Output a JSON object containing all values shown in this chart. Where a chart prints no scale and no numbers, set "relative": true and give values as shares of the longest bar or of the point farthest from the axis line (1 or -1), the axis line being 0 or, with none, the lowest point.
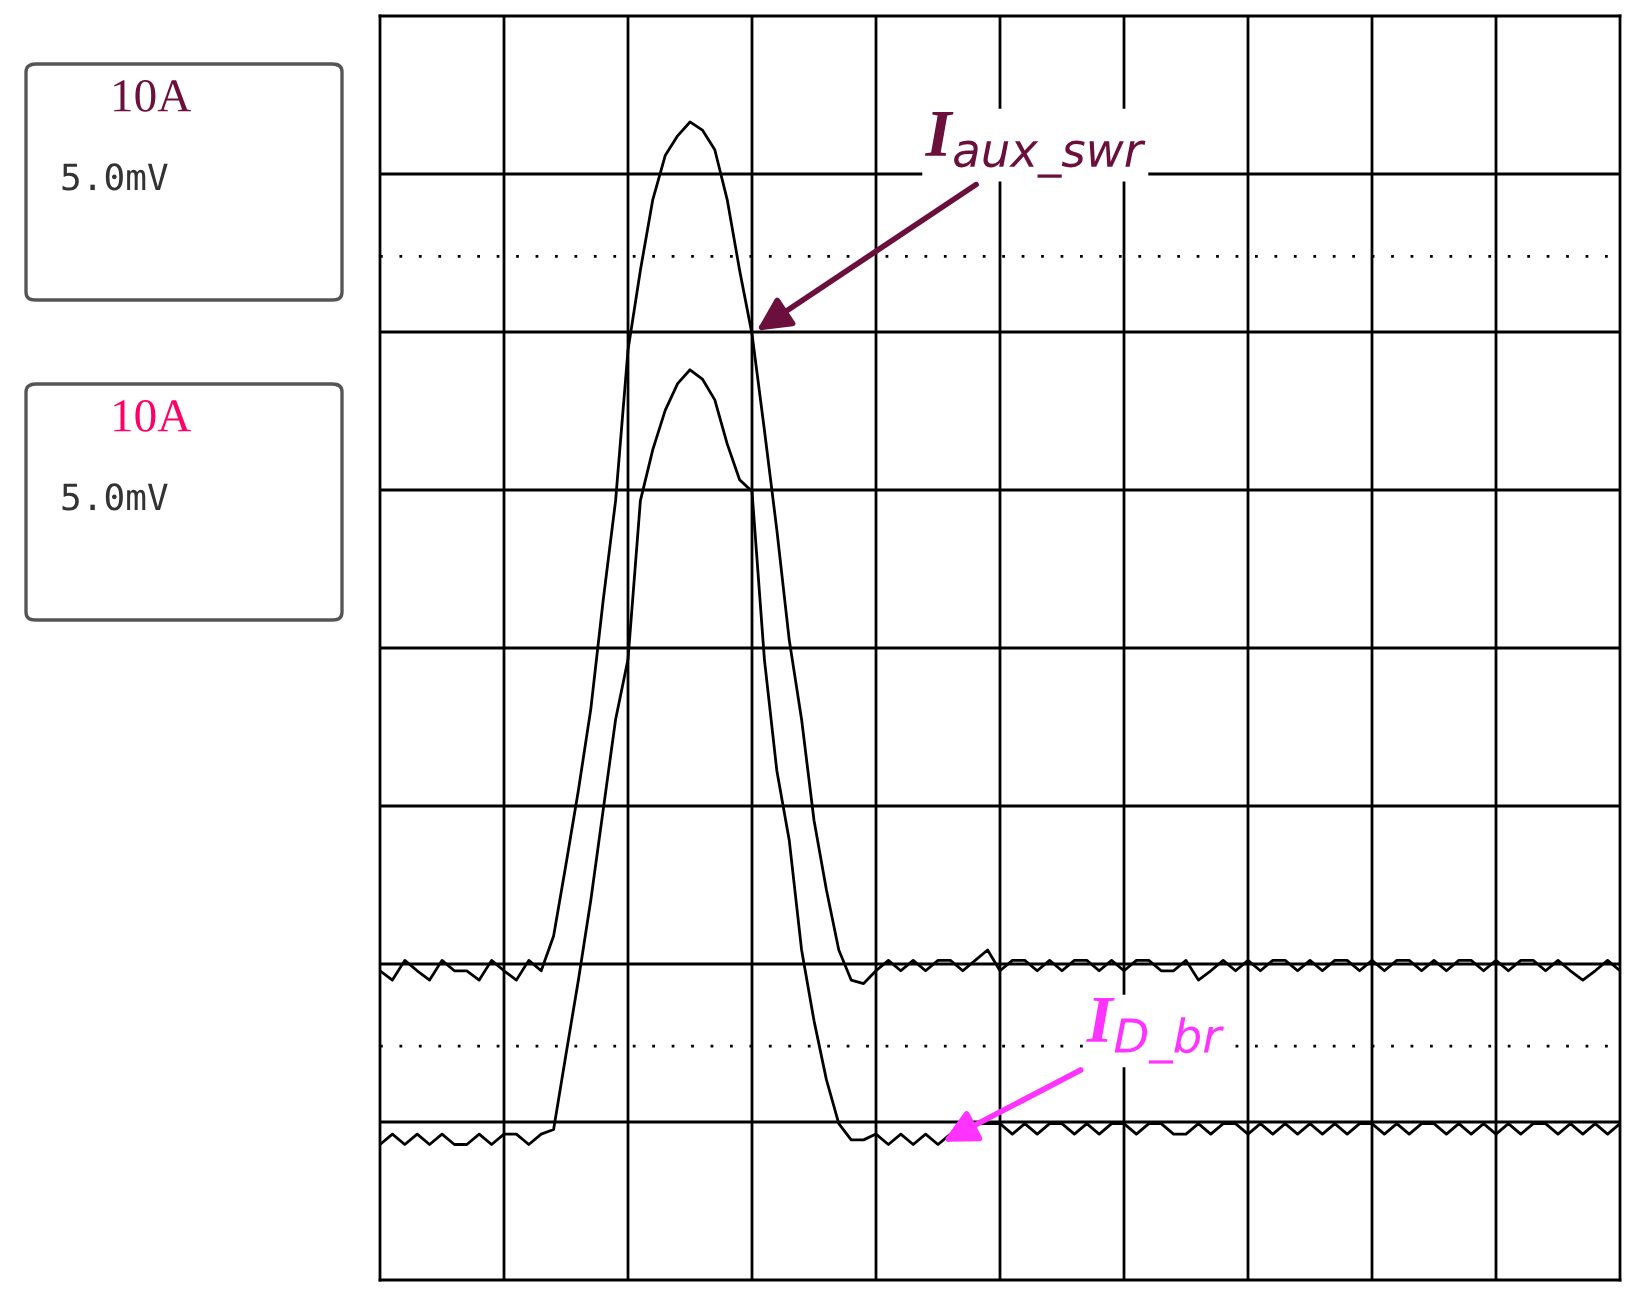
{
  "chart_data": {
    "type": "line",
    "relative": true,
    "grid": true,
    "categories": [
      null,
      null,
      null,
      null,
      null,
      null,
      null,
      null,
      null,
      null,
      null,
      null,
      null,
      null,
      null,
      null,
      null,
      null,
      null,
      null,
      null,
      null,
      null,
      null,
      null,
      null,
      null,
      null,
      null,
      null,
      null,
      null,
      null,
      null,
      null,
      null,
      null,
      null,
      null,
      null,
      null,
      null,
      null,
      null,
      null,
      null,
      null,
      null,
      null,
      null,
      null,
      null,
      null,
      null,
      null,
      null,
      null,
      null,
      null,
      null,
      null,
      null,
      null,
      null,
      null,
      null,
      null,
      null,
      null,
      null,
      null,
      null,
      null,
      null,
      null,
      null,
      null,
      null,
      null,
      null,
      null,
      null,
      null,
      null,
      null,
      null,
      null,
      null,
      null,
      null,
      null,
      null,
      null,
      null,
      null,
      null,
      null,
      null,
      null,
      null,
      null
    ],
    "series": [
      {
        "name": "I$_{aux_swr}$",
        "color": "#000000",
        "values": [
          0.267,
          0.259,
          0.276,
          0.267,
          0.259,
          0.276,
          0.267,
          0.267,
          0.259,
          0.276,
          0.267,
          0.259,
          0.276,
          0.267,
          0.297,
          0.359,
          0.423,
          0.493,
          0.587,
          0.673,
          0.803,
          0.872,
          0.933,
          0.971,
          0.988,
          1.0,
          0.993,
          0.976,
          0.933,
          0.872,
          0.817,
          0.734,
          0.648,
          0.553,
          0.484,
          0.397,
          0.337,
          0.285,
          0.259,
          0.256,
          0.267,
          0.276,
          0.267,
          0.276,
          0.267,
          0.276,
          0.276,
          0.267,
          0.276,
          0.285,
          0.267,
          0.276,
          0.276,
          0.267,
          0.276,
          0.267,
          0.276,
          0.276,
          0.267,
          0.276,
          0.267,
          0.276,
          0.276,
          0.267,
          0.267,
          0.276,
          0.259,
          0.267,
          0.276,
          0.267,
          0.276,
          0.267,
          0.276,
          0.276,
          0.267,
          0.276,
          0.267,
          0.276,
          0.276,
          0.267,
          0.276,
          0.267,
          0.276,
          0.276,
          0.267,
          0.276,
          0.267,
          0.276,
          0.276,
          0.267,
          0.276,
          0.267,
          0.276,
          0.276,
          0.267,
          0.276,
          0.267,
          0.259,
          0.267,
          0.276,
          0.267
        ]
      },
      {
        "name": "I$_{D_br}$",
        "color": "#000000",
        "values": [
          0.117,
          0.126,
          0.117,
          0.126,
          0.117,
          0.126,
          0.117,
          0.117,
          0.126,
          0.117,
          0.126,
          0.126,
          0.117,
          0.126,
          0.13,
          0.195,
          0.259,
          0.328,
          0.406,
          0.484,
          0.536,
          0.673,
          0.717,
          0.751,
          0.774,
          0.786,
          0.778,
          0.76,
          0.722,
          0.691,
          0.681,
          0.536,
          0.44,
          0.38,
          0.285,
          0.224,
          0.173,
          0.135,
          0.121,
          0.121,
          0.126,
          0.117,
          0.126,
          0.117,
          0.126,
          0.117,
          0.126,
          0.126,
          0.135,
          0.135,
          0.135,
          0.126,
          0.135,
          0.126,
          0.135,
          0.135,
          0.126,
          0.135,
          0.126,
          0.135,
          0.135,
          0.126,
          0.135,
          0.135,
          0.126,
          0.126,
          0.135,
          0.126,
          0.135,
          0.135,
          0.126,
          0.135,
          0.126,
          0.135,
          0.126,
          0.135,
          0.126,
          0.135,
          0.126,
          0.135,
          0.135,
          0.126,
          0.135,
          0.126,
          0.135,
          0.135,
          0.126,
          0.135,
          0.126,
          0.135,
          0.126,
          0.135,
          0.126,
          0.135,
          0.135,
          0.126,
          0.135,
          0.126,
          0.135,
          0.126,
          0.135
        ]
      }
    ],
    "ref_lines": [
      {
        "axis": "y",
        "value": 0.884,
        "line_style": "dotted"
      },
      {
        "axis": "y",
        "value": 0.202,
        "line_style": "dotted"
      }
    ],
    "annotations": [
      "10A",
      "5.0mV",
      "10A",
      "5.0mV"
    ]
  }
}
